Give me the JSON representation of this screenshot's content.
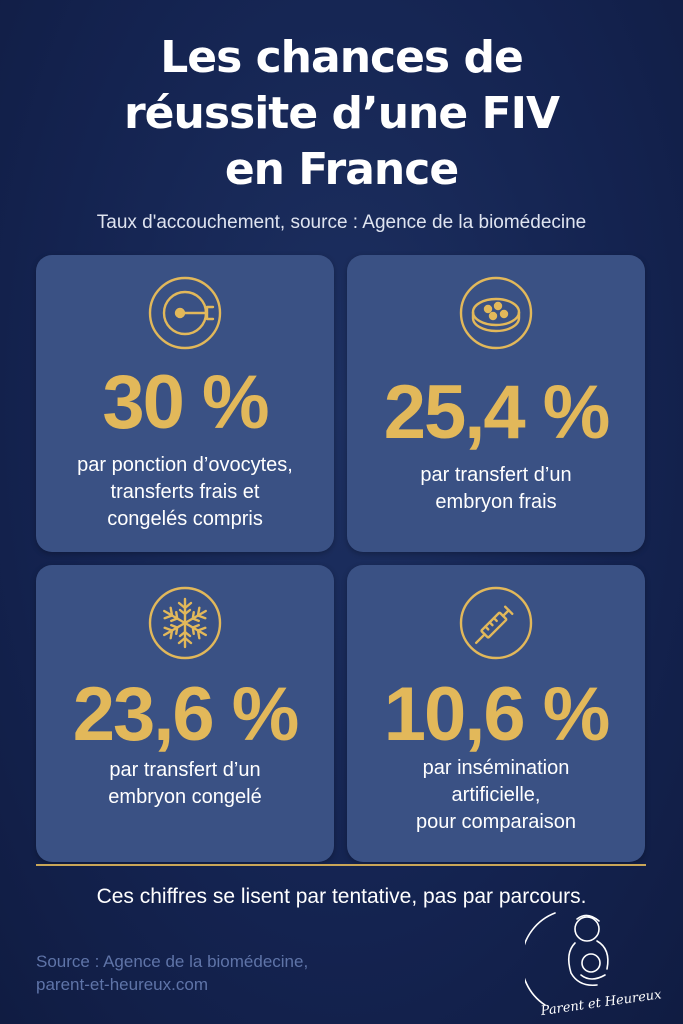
{
  "header": {
    "title_lines": [
      "Les chances de",
      "réussite d’une FIV",
      "en France"
    ],
    "subtitle": "Taux d'accouchement, source : Agence de la biomédecine"
  },
  "cards": [
    {
      "icon": "petri-dish-pipette-icon",
      "value": "30 %",
      "desc_lines": [
        "par ponction d’ovocytes,",
        "transferts frais et",
        "congelés compris"
      ]
    },
    {
      "icon": "petri-dish-cells-icon",
      "value": "25,4 %",
      "desc_lines": [
        "par transfert d’un",
        "embryon frais"
      ]
    },
    {
      "icon": "snowflake-icon",
      "value": "23,6 %",
      "desc_lines": [
        "par transfert d’un",
        "embryon congelé"
      ]
    },
    {
      "icon": "syringe-icon",
      "value": "10,6 %",
      "desc_lines": [
        "par insémination",
        "artificielle,",
        "pour comparaison"
      ]
    }
  ],
  "note": "Ces chiffres se lisent par tentative, pas par parcours.",
  "source_lines": [
    "Source : Agence de la biomédecine,",
    "parent-et-heureux.com"
  ],
  "logo": {
    "text": "Parent et Heureux",
    "icon": "parent-baby-logo-icon"
  },
  "colors": {
    "background": "#152550",
    "card": "#3a5184",
    "accent_gold": "#e2b85a",
    "text": "#ffffff",
    "source_text": "#5f74a8"
  }
}
